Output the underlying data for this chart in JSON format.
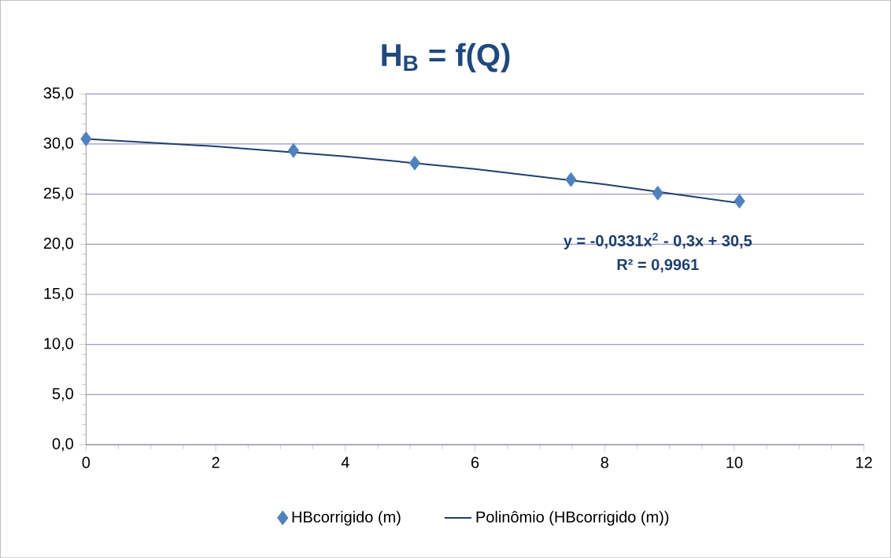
{
  "chart_data": {
    "type": "scatter",
    "title": "**H$_{B}$ = f(Q)**",
    "series": [
      {
        "name": "HBcorrigido (m)",
        "color": "#4f81bd",
        "marker": "diamond",
        "x": [
          0,
          3.2,
          5.07,
          7.48,
          8.82,
          10.08
        ],
        "values": [
          30.5,
          29.35,
          28.1,
          26.45,
          25.1,
          24.3
        ]
      },
      {
        "name": "Polinômio (HBcorrigido (m))",
        "type": "line",
        "color": "#1f3f6e",
        "marker": "none",
        "line_style": "solid",
        "x": [
          0,
          2,
          4,
          6,
          8,
          10.08
        ],
        "values": [
          30.5,
          29.77,
          28.77,
          27.51,
          25.98,
          24.1
        ]
      }
    ],
    "xlim": [
      0,
      12
    ],
    "xticks": [
      0,
      2,
      4,
      6,
      8,
      10,
      12
    ],
    "ylim": [
      0,
      35
    ],
    "yticks": [
      {
        "value": 0,
        "label": "0,0"
      },
      {
        "value": 5,
        "label": "5,0"
      },
      {
        "value": 10,
        "label": "10,0"
      },
      {
        "value": 15,
        "label": "15,0"
      },
      {
        "value": 20,
        "label": "20,0"
      },
      {
        "value": 25,
        "label": "25,0"
      },
      {
        "value": 30,
        "label": "30,0"
      },
      {
        "value": 35,
        "label": "35,0"
      }
    ],
    "grid": "y",
    "legend": "bottom",
    "annotations": [
      "**y = -0,0331x$^{2}$ - 0,3x + 30,5**",
      "**R² = 0,9961**"
    ]
  }
}
